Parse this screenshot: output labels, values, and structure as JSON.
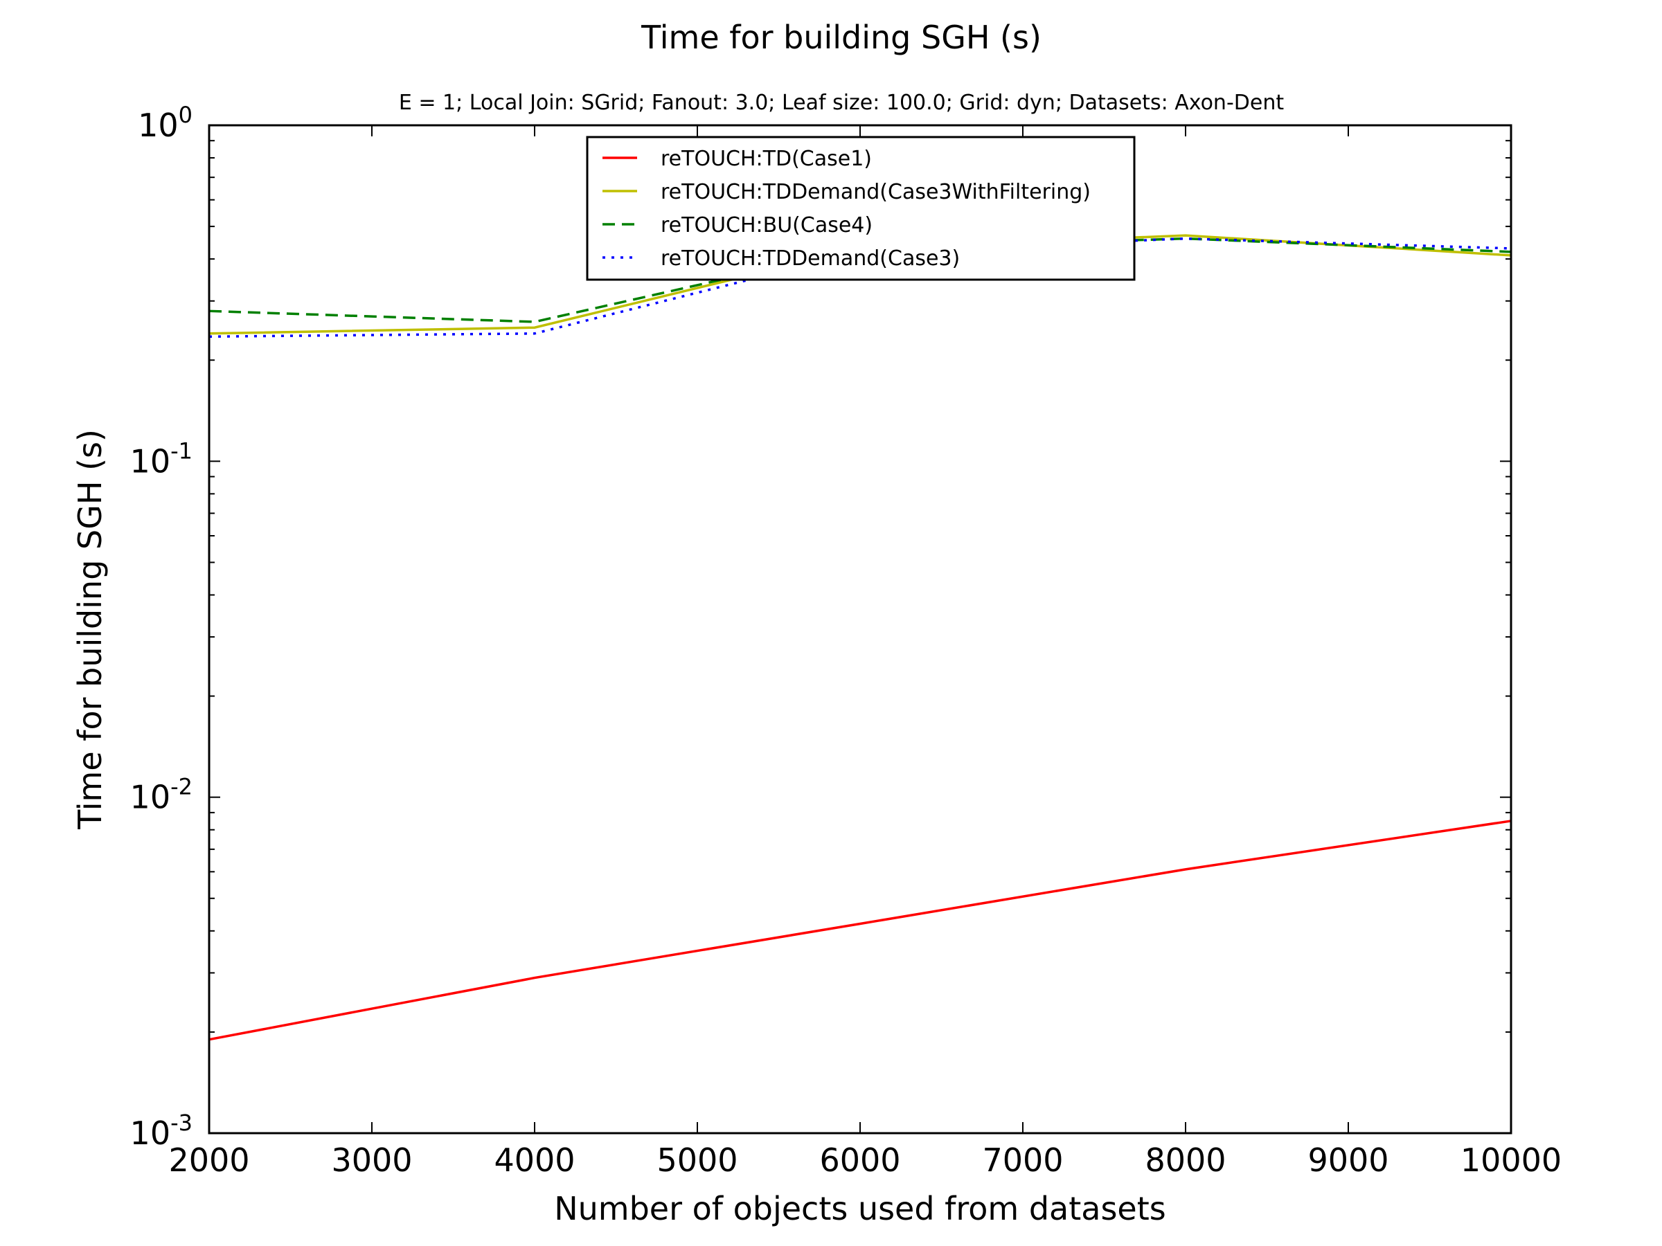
{
  "chart_data": {
    "type": "line",
    "title": "Time for building SGH (s)",
    "subtitle": "E = 1; Local Join: SGrid; Fanout: 3.0; Leaf size: 100.0; Grid: dyn; Datasets: Axon-Dent",
    "xlabel": "Number of objects used from datasets",
    "ylabel": "Time for building SGH (s)",
    "xlim": [
      2000,
      10000
    ],
    "ylim": [
      0.001,
      1
    ],
    "yscale": "log",
    "grid": false,
    "legend_position": "top-center",
    "x_ticks": [
      "2000",
      "3000",
      "4000",
      "5000",
      "6000",
      "7000",
      "8000",
      "9000",
      "10000"
    ],
    "y_ticks": [
      {
        "base": "10",
        "exp": "-3",
        "value": 0.001
      },
      {
        "base": "10",
        "exp": "-2",
        "value": 0.01
      },
      {
        "base": "10",
        "exp": "-1",
        "value": 0.1
      },
      {
        "base": "10",
        "exp": "0",
        "value": 1
      }
    ],
    "x": [
      2000,
      4000,
      6000,
      8000,
      10000
    ],
    "series": [
      {
        "name": "reTOUCH:TD(Case1)",
        "color": "#ff0000",
        "dash": "solid",
        "values": [
          0.0019,
          0.0029,
          0.0042,
          0.0061,
          0.0085
        ]
      },
      {
        "name": "reTOUCH:TDDemand(Case3WithFiltering)",
        "color": "#bfbf00",
        "dash": "solid",
        "values": [
          0.24,
          0.25,
          0.43,
          0.47,
          0.41
        ]
      },
      {
        "name": "reTOUCH:BU(Case4)",
        "color": "#008000",
        "dash": "dashed",
        "values": [
          0.28,
          0.26,
          0.43,
          0.46,
          0.42
        ]
      },
      {
        "name": "reTOUCH:TDDemand(Case3)",
        "color": "#0000ff",
        "dash": "dotted",
        "values": [
          0.235,
          0.24,
          0.42,
          0.46,
          0.43
        ]
      }
    ]
  }
}
